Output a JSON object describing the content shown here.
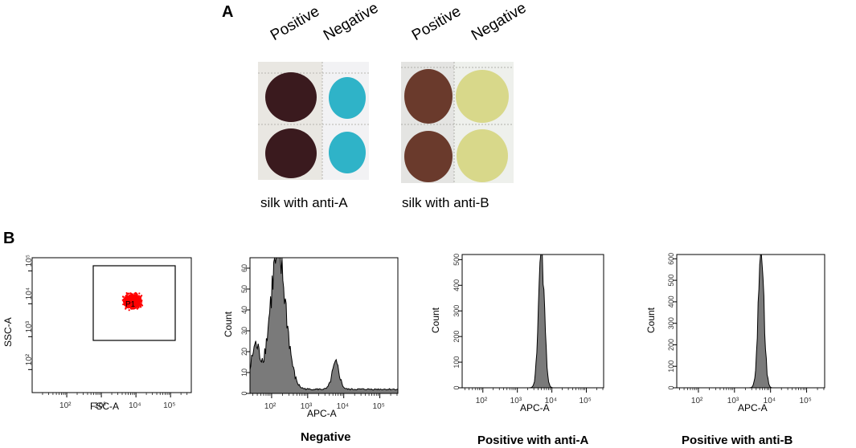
{
  "panel_a": {
    "letter": "A",
    "col_labels": [
      "Positive",
      "Negative",
      "Positive",
      "Negative"
    ],
    "captions": [
      "silk with anti-A",
      "silk with anti-B"
    ],
    "colors": {
      "anti_a_positive": "#3a1a1e",
      "anti_a_negative": "#2fb3c8",
      "anti_b_positive": "#6a3a2c",
      "anti_b_negative": "#d8d88a"
    }
  },
  "panel_b": {
    "letter": "B",
    "plot_captions": [
      "Negative",
      "Positive with anti-A",
      "Positive with anti-B"
    ],
    "gate_label": "P1"
  },
  "chart_data": [
    {
      "type": "scatter",
      "xlabel": "FSC-A",
      "ylabel": "SSC-A",
      "x_scale": "log",
      "y_scale": "log",
      "x_ticks": [
        "10²",
        "10³",
        "10⁴",
        "10⁵"
      ],
      "y_ticks": [
        "10²",
        "10³",
        "10⁴",
        "10⁵"
      ],
      "gate": {
        "name": "P1",
        "x_range": [
          1000,
          200000
        ],
        "y_range": [
          1000,
          100000
        ]
      },
      "population_center": [
        8000,
        12000
      ],
      "point_color": "#ff0000"
    },
    {
      "type": "area",
      "title": "Negative",
      "xlabel": "APC-A",
      "ylabel": "Count",
      "x_scale": "log",
      "x_ticks": [
        "10²",
        "10³",
        "10⁴",
        "10⁵"
      ],
      "y_ticks": [
        "0",
        "10",
        "20",
        "30",
        "40",
        "50",
        "60"
      ],
      "ylim": [
        0,
        65
      ],
      "peaks": [
        {
          "x": 150,
          "y": 64
        },
        {
          "x": 6000,
          "y": 12
        }
      ]
    },
    {
      "type": "area",
      "title": "Positive with anti-A",
      "xlabel": "APC-A",
      "ylabel": "Count",
      "x_scale": "log",
      "x_ticks": [
        "10²",
        "10³",
        "10⁴",
        "10⁵"
      ],
      "y_ticks": [
        "0",
        "100",
        "200",
        "300",
        "400",
        "500"
      ],
      "ylim": [
        0,
        520
      ],
      "peaks": [
        {
          "x": 5000,
          "y": 510
        }
      ]
    },
    {
      "type": "area",
      "title": "Positive with anti-B",
      "xlabel": "APC-A",
      "ylabel": "Count",
      "x_scale": "log",
      "x_ticks": [
        "10²",
        "10³",
        "10⁴",
        "10⁵"
      ],
      "y_ticks": [
        "0",
        "100",
        "200",
        "300",
        "400",
        "500",
        "600"
      ],
      "ylim": [
        0,
        620
      ],
      "peaks": [
        {
          "x": 5500,
          "y": 610
        }
      ]
    }
  ]
}
